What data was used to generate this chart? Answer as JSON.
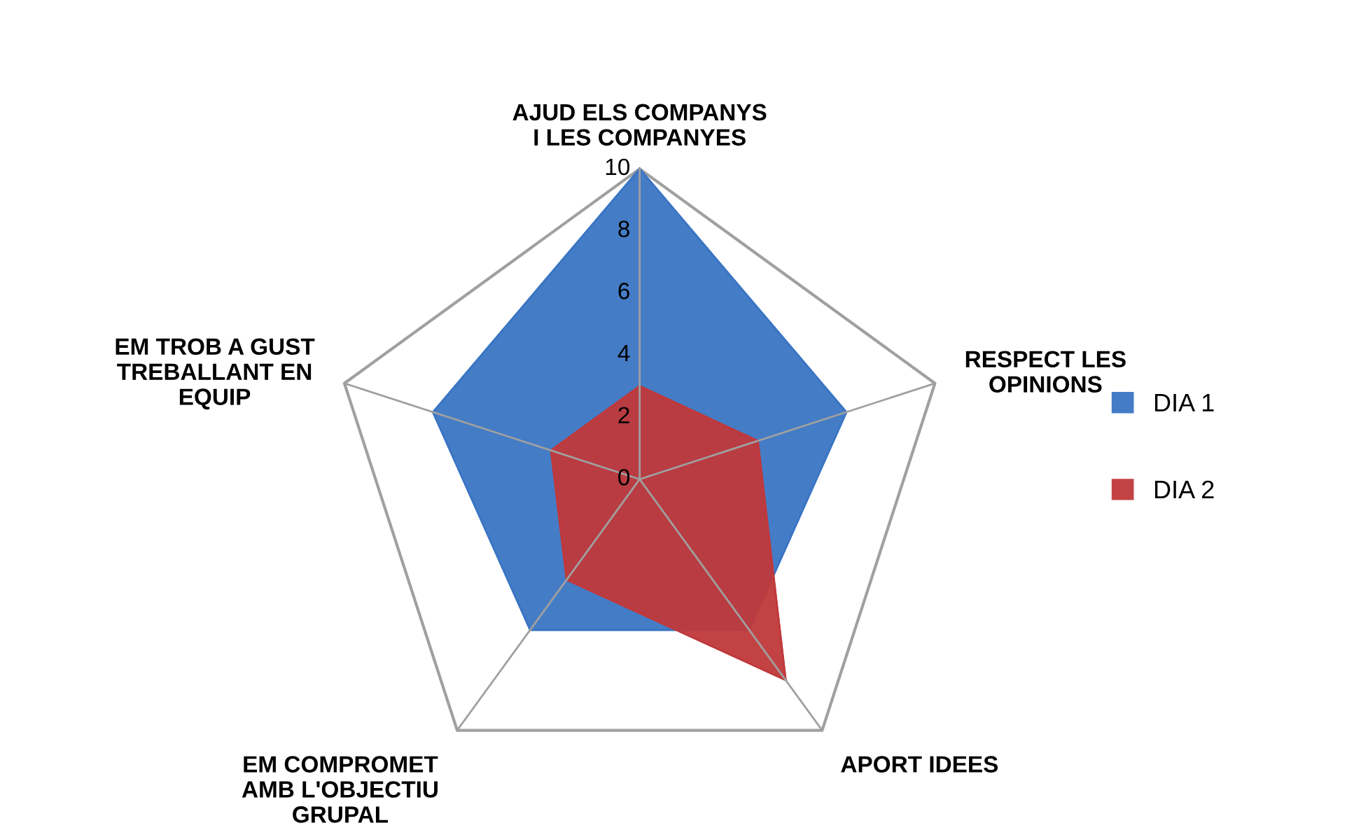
{
  "chart_data": {
    "type": "radar",
    "categories": [
      "AJUD ELS COMPANYS\nI LES COMPANYES",
      "RESPECT LES\nOPINIONS",
      "APORT IDEES",
      "EM COMPROMET\nAMB L'OBJECTIU\nGRUPAL",
      "EM TROB A GUST\nTREBALLANT EN\nEQUIP"
    ],
    "series": [
      {
        "name": "DIA 1",
        "color": "#3a75c4",
        "values": [
          10,
          7,
          6,
          6,
          7
        ]
      },
      {
        "name": "DIA 2",
        "color": "#c0393b",
        "values": [
          3,
          4,
          8,
          4,
          3
        ]
      }
    ],
    "ylim": [
      0,
      10
    ],
    "yticks": [
      0,
      2,
      4,
      6,
      8,
      10
    ],
    "legend": "right"
  }
}
